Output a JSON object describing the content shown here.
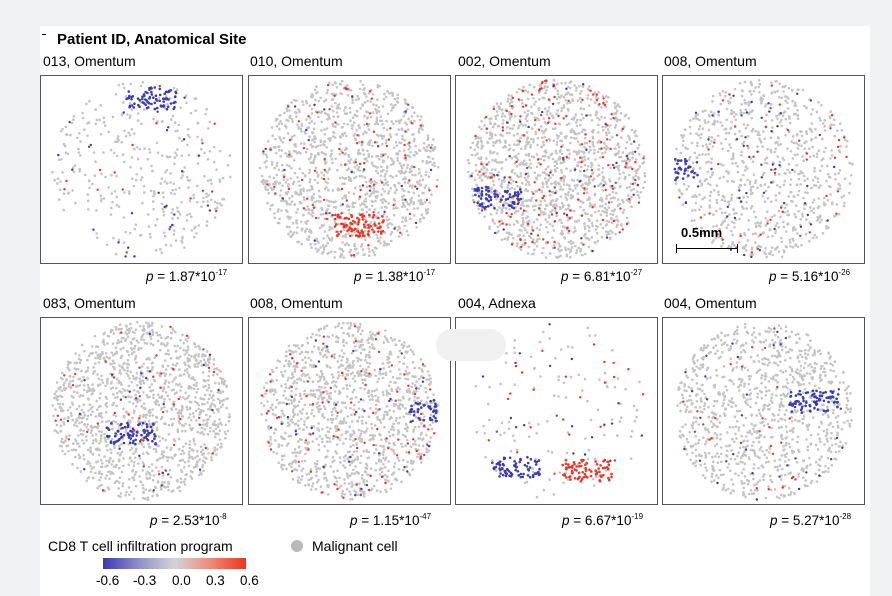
{
  "figure": {
    "title": "Patient ID, Anatomical Site",
    "scale_bar_label": "0.5mm"
  },
  "panels": [
    {
      "label": "013, Omentum",
      "p_prefix": "p",
      "p_value": " = 1.87*10",
      "p_exp": "-17"
    },
    {
      "label": "010, Omentum",
      "p_prefix": "p",
      "p_value": " = 1.38*10",
      "p_exp": "-17"
    },
    {
      "label": "002, Omentum",
      "p_prefix": "p",
      "p_value": " = 6.81*10",
      "p_exp": "-27"
    },
    {
      "label": "008, Omentum",
      "p_prefix": "p",
      "p_value": " = 5.16*10",
      "p_exp": "-26"
    },
    {
      "label": "083, Omentum",
      "p_prefix": "p",
      "p_value": " = 2.53*10",
      "p_exp": "-8"
    },
    {
      "label": "008, Omentum",
      "p_prefix": "p",
      "p_value": " = 1.15*10",
      "p_exp": "-47"
    },
    {
      "label": "004, Adnexa",
      "p_prefix": "p",
      "p_value": " = 6.67*10",
      "p_exp": "-19"
    },
    {
      "label": "004, Omentum",
      "p_prefix": "p",
      "p_value": " = 5.27*10",
      "p_exp": "-28"
    }
  ],
  "legend": {
    "colorbar_title": "CD8 T cell infiltration program",
    "colorbar_ticks": [
      "-0.6",
      "-0.3",
      "0.0",
      "0.3",
      "0.6"
    ],
    "malignant_label": "Malignant cell",
    "colors": {
      "low": "#3b3bb3",
      "mid": "#d3d3d6",
      "high": "#ee3322",
      "malignant": "#b9b9b9"
    }
  }
}
